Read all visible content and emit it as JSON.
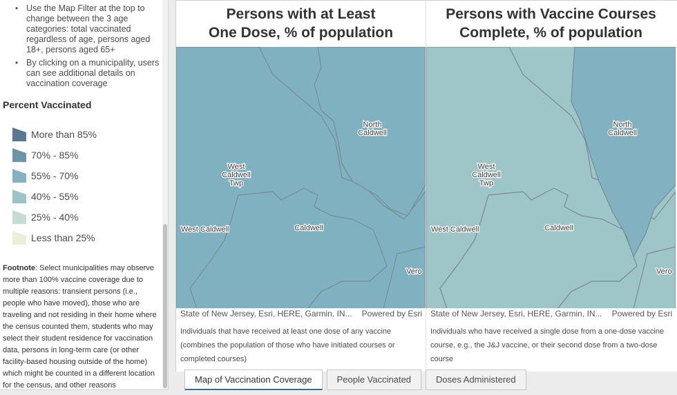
{
  "sidebar": {
    "bullets": [
      "Use the Map Filter at the top to change between the 3 age categories: total vaccinated regardless of age, persons aged 18+, persons aged 65+",
      "By clicking on a municipality, users can see additional details on vaccination coverage"
    ],
    "legend_title": "Percent Vaccinated",
    "legend": [
      {
        "label": "More than 85%",
        "color": "#5a7894"
      },
      {
        "label": "70% - 85%",
        "color": "#6e94a8"
      },
      {
        "label": "55% - 70%",
        "color": "#85b2c0"
      },
      {
        "label": "40% - 55%",
        "color": "#9cc3c6"
      },
      {
        "label": "25% - 40%",
        "color": "#c6dcd3"
      },
      {
        "label": "Less than 25%",
        "color": "#eaf0d8"
      }
    ],
    "footnote_label": "Footnote",
    "footnote_text": ": Select municipalities may observe more than 100% vaccine coverage due to multiple reasons: transient persons (i.e., people who have moved), those who are traveling and not residing in their home where the census counted them, students who may select their student residence for vaccination data, persons in long-term care (or other facility-based housing outside of the home) which might be counted in a different location for the census, and other reasons"
  },
  "maps": [
    {
      "title_line1": "Persons with at Least",
      "title_line2": "One Dose, % of population",
      "fill_main": "#7fb1c0",
      "fill_other": "#7fb1c0",
      "labels": {
        "north": [
          "North",
          "Caldwell"
        ],
        "west": [
          "West",
          "Caldwell",
          "Twp"
        ],
        "westcaldwell": "West Caldwell",
        "caldwell": "Caldwell",
        "vero": "Vero"
      },
      "attribution": "State of New Jersey, Esri, HERE, Garmin, IN...",
      "powered": "Powered by Esri",
      "description": "Individuals that have received at least one dose of any vaccine (combines the population of those who have initiated courses or completed courses)"
    },
    {
      "title_line1": "Persons with Vaccine Courses",
      "title_line2": "Complete, % of population",
      "fill_main": "#9ec5c7",
      "fill_other": "#82b2c1",
      "labels": {
        "north": [
          "North",
          "Caldwell"
        ],
        "west": [
          "West",
          "Caldwell",
          "Twp"
        ],
        "westcaldwell": "West Caldwell",
        "caldwell": "Caldwell",
        "vero": "Vero"
      },
      "attribution": "State of New Jersey, Esri, HERE, Garmin, IN...",
      "powered": "Powered by Esri",
      "description": "Individuals who have received a single dose from a one-dose vaccine course, e.g., the J&J vaccine, or their second dose from a two-dose course"
    }
  ],
  "tabs": [
    {
      "label": "Map of Vaccination Coverage",
      "active": true
    },
    {
      "label": "People Vaccinated",
      "active": false
    },
    {
      "label": "Doses Administered",
      "active": false
    }
  ]
}
